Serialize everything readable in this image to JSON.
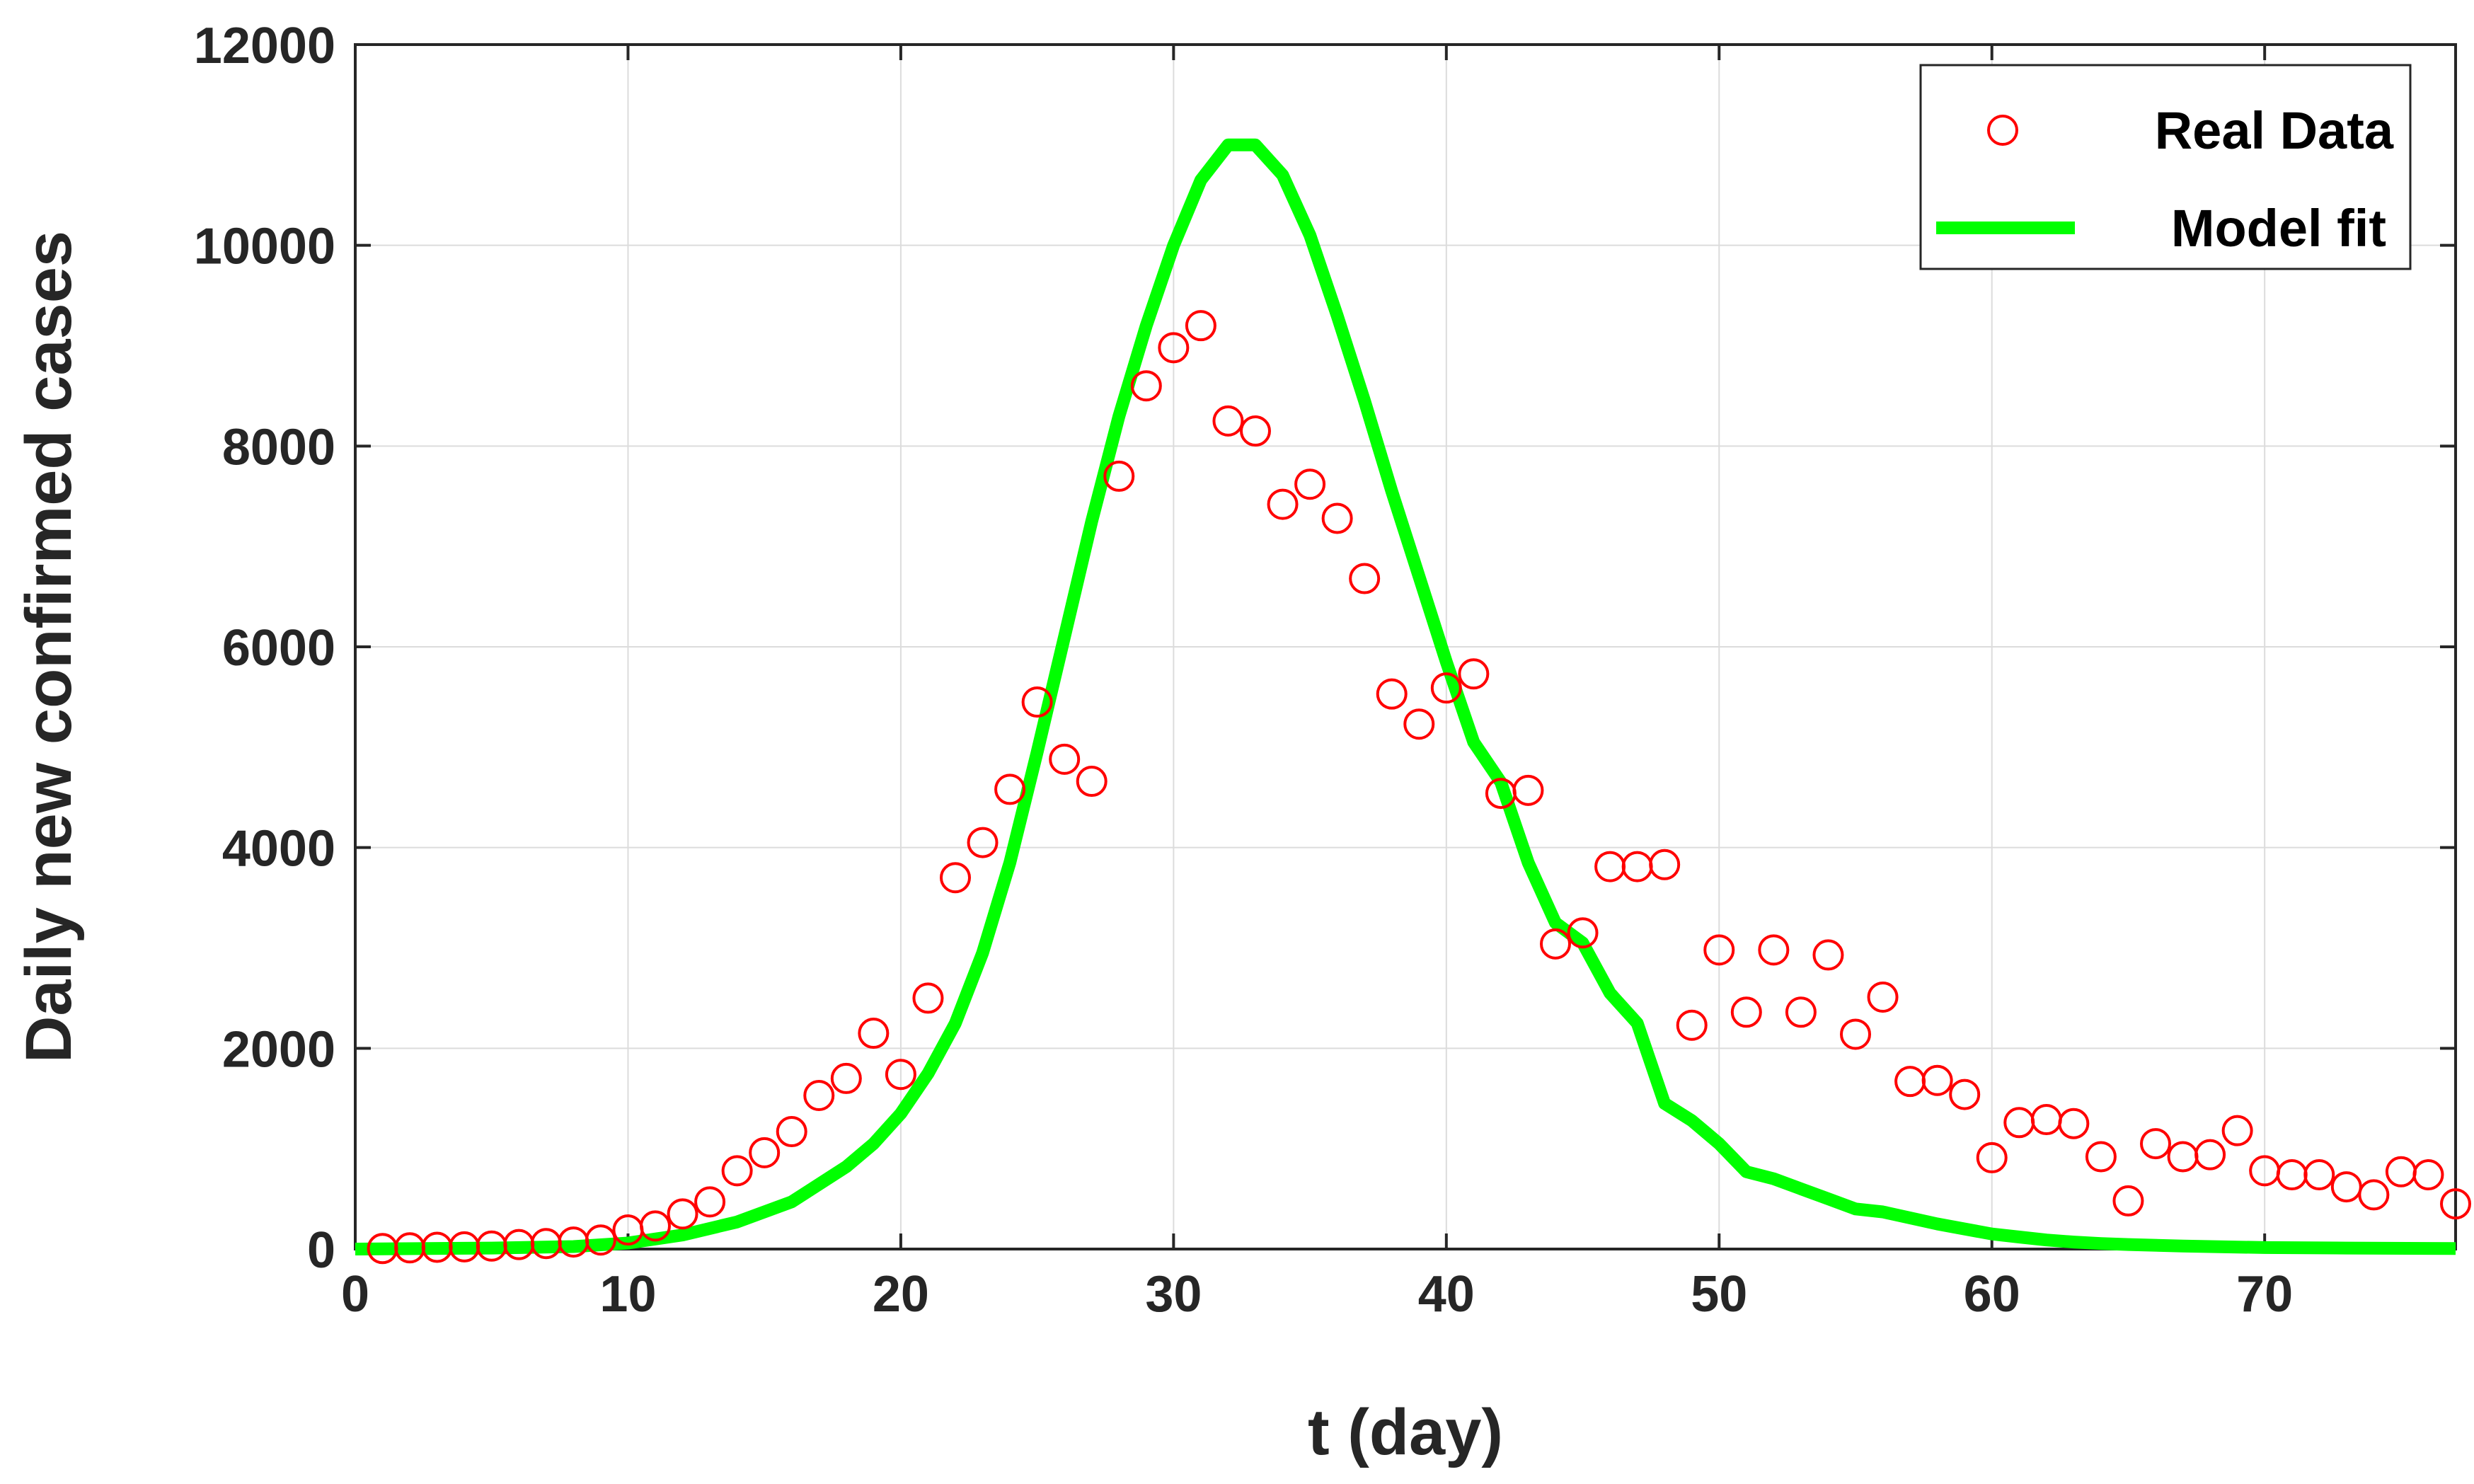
{
  "chart_data": {
    "type": "scatter",
    "xlabel": "t (day)",
    "ylabel": "Daily new confirmed cases",
    "xlim": [
      0,
      77
    ],
    "ylim": [
      0,
      12000
    ],
    "xticks": [
      0,
      10,
      20,
      30,
      40,
      50,
      60,
      70
    ],
    "yticks": [
      0,
      2000,
      4000,
      6000,
      8000,
      10000,
      12000
    ],
    "grid": true,
    "legend_position": "top-right",
    "colors": {
      "real": "#ff0000",
      "model": "#00ff00",
      "axis": "#262626",
      "grid": "#dcdcdc"
    },
    "series": [
      {
        "name": "Real Data",
        "marker": "circle",
        "x": [
          1,
          2,
          3,
          4,
          5,
          6,
          7,
          8,
          9,
          10,
          11,
          12,
          13,
          14,
          15,
          16,
          17,
          18,
          19,
          20,
          21,
          22,
          23,
          24,
          25,
          26,
          27,
          28,
          29,
          30,
          31,
          32,
          33,
          34,
          35,
          36,
          37,
          38,
          39,
          40,
          41,
          42,
          43,
          44,
          45,
          46,
          47,
          48,
          49,
          50,
          51,
          52,
          53,
          54,
          55,
          56,
          57,
          58,
          59,
          60,
          61,
          62,
          63,
          64,
          65,
          66,
          67,
          68,
          69,
          70,
          71,
          72,
          73,
          74,
          75,
          76,
          77
        ],
        "y": [
          5,
          12,
          18,
          22,
          30,
          45,
          55,
          70,
          90,
          190,
          230,
          350,
          470,
          780,
          960,
          1170,
          1530,
          1700,
          2150,
          1740,
          2500,
          3700,
          4050,
          4580,
          5450,
          4880,
          4660,
          7700,
          8600,
          8980,
          9200,
          8250,
          8150,
          7420,
          7620,
          7280,
          6680,
          5530,
          5230,
          5590,
          5730,
          4540,
          4570,
          3040,
          3150,
          3810,
          3810,
          3830,
          2230,
          2980,
          2360,
          2980,
          2360,
          2930,
          2140,
          2510,
          1670,
          1680,
          1540,
          910,
          1260,
          1290,
          1250,
          920,
          480,
          1050,
          920,
          940,
          1180,
          780,
          740,
          740,
          620,
          540,
          770,
          740,
          450
        ]
      },
      {
        "name": "Model fit",
        "type": "line",
        "x": [
          0,
          5,
          8,
          10,
          12,
          14,
          16,
          18,
          19,
          20,
          21,
          22,
          23,
          24,
          25,
          26,
          27,
          28,
          29,
          30,
          31,
          32,
          33,
          34,
          35,
          36,
          37,
          38,
          39,
          40,
          41,
          42,
          43,
          44,
          45,
          46,
          47,
          48,
          49,
          50,
          51,
          52,
          53,
          54,
          55,
          56,
          57,
          58,
          59,
          60,
          61,
          62,
          63,
          64,
          65,
          67,
          70,
          73,
          77
        ],
        "y": [
          0,
          10,
          25,
          60,
          140,
          270,
          470,
          820,
          1050,
          1350,
          1750,
          2250,
          2950,
          3850,
          4950,
          6100,
          7250,
          8300,
          9200,
          10000,
          10650,
          11000,
          11000,
          10700,
          10100,
          9300,
          8450,
          7550,
          6700,
          5850,
          5050,
          4650,
          3850,
          3250,
          3050,
          2550,
          2250,
          1450,
          1280,
          1050,
          770,
          700,
          600,
          500,
          400,
          370,
          310,
          250,
          200,
          150,
          120,
          90,
          70,
          55,
          45,
          30,
          15,
          10,
          5
        ]
      }
    ]
  }
}
